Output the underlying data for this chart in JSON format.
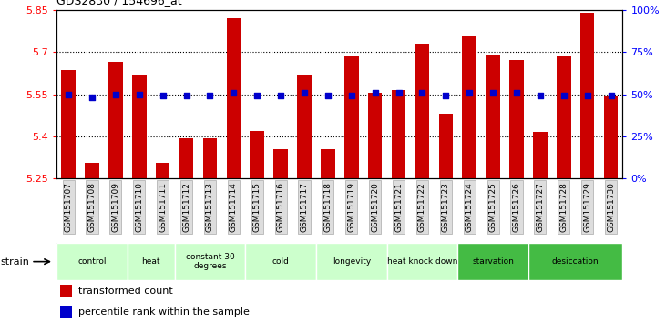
{
  "title": "GDS2830 / 154696_at",
  "samples": [
    "GSM151707",
    "GSM151708",
    "GSM151709",
    "GSM151710",
    "GSM151711",
    "GSM151712",
    "GSM151713",
    "GSM151714",
    "GSM151715",
    "GSM151716",
    "GSM151717",
    "GSM151718",
    "GSM151719",
    "GSM151720",
    "GSM151721",
    "GSM151722",
    "GSM151723",
    "GSM151724",
    "GSM151725",
    "GSM151726",
    "GSM151727",
    "GSM151728",
    "GSM151729",
    "GSM151730"
  ],
  "bar_values": [
    5.635,
    5.305,
    5.665,
    5.615,
    5.305,
    5.395,
    5.395,
    5.82,
    5.42,
    5.355,
    5.62,
    5.355,
    5.685,
    5.555,
    5.565,
    5.73,
    5.48,
    5.755,
    5.69,
    5.67,
    5.415,
    5.685,
    5.84,
    5.545
  ],
  "percentile_values": [
    5.549,
    5.539,
    5.549,
    5.549,
    5.544,
    5.544,
    5.544,
    5.554,
    5.544,
    5.544,
    5.554,
    5.544,
    5.544,
    5.554,
    5.554,
    5.554,
    5.544,
    5.554,
    5.554,
    5.554,
    5.544,
    5.544,
    5.544,
    5.544
  ],
  "ylim": [
    5.25,
    5.85
  ],
  "yticks_left": [
    5.25,
    5.4,
    5.55,
    5.7,
    5.85
  ],
  "yticks_right": [
    0,
    25,
    50,
    75,
    100
  ],
  "bar_color": "#cc0000",
  "dot_color": "#0000cc",
  "bar_bottom": 5.25,
  "groups": [
    {
      "label": "control",
      "start": 0,
      "end": 3,
      "color": "#ccffcc"
    },
    {
      "label": "heat",
      "start": 3,
      "end": 5,
      "color": "#ccffcc"
    },
    {
      "label": "constant 30\ndegrees",
      "start": 5,
      "end": 8,
      "color": "#ccffcc"
    },
    {
      "label": "cold",
      "start": 8,
      "end": 11,
      "color": "#ccffcc"
    },
    {
      "label": "longevity",
      "start": 11,
      "end": 14,
      "color": "#ccffcc"
    },
    {
      "label": "heat knock down",
      "start": 14,
      "end": 17,
      "color": "#ccffcc"
    },
    {
      "label": "starvation",
      "start": 17,
      "end": 20,
      "color": "#44bb44"
    },
    {
      "label": "desiccation",
      "start": 20,
      "end": 24,
      "color": "#44bb44"
    }
  ],
  "hgrid_lines": [
    5.4,
    5.55,
    5.7
  ],
  "legend_items": [
    {
      "label": "transformed count",
      "color": "#cc0000"
    },
    {
      "label": "percentile rank within the sample",
      "color": "#0000cc"
    }
  ]
}
